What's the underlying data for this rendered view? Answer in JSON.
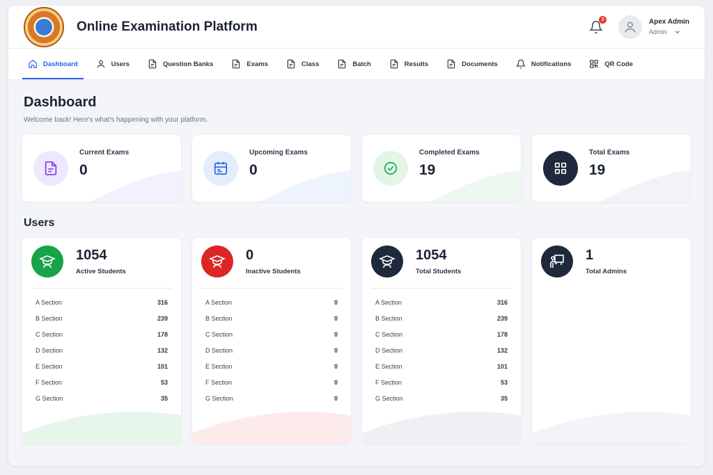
{
  "app": {
    "title": "Online Examination Platform"
  },
  "header": {
    "notification_count": "3",
    "user_name": "Apex Admin",
    "user_role": "Admin"
  },
  "nav": {
    "items": [
      {
        "label": "Dashboard",
        "icon": "home-icon"
      },
      {
        "label": "Users",
        "icon": "user-icon"
      },
      {
        "label": "Question Banks",
        "icon": "document-icon"
      },
      {
        "label": "Exams",
        "icon": "document-icon"
      },
      {
        "label": "Class",
        "icon": "document-icon"
      },
      {
        "label": "Batch",
        "icon": "document-icon"
      },
      {
        "label": "Results",
        "icon": "document-icon"
      },
      {
        "label": "Documents",
        "icon": "document-icon"
      },
      {
        "label": "Notifications",
        "icon": "bell-icon"
      },
      {
        "label": "QR Code",
        "icon": "qr-code-icon"
      }
    ]
  },
  "page": {
    "title": "Dashboard",
    "subtitle": "Welcome back! Here's what's happening with your platform."
  },
  "stats": [
    {
      "label": "Current Exams",
      "value": "0",
      "icon": "document-icon",
      "color": "#7c3aed"
    },
    {
      "label": "Upcoming Exams",
      "value": "0",
      "icon": "calendar-icon",
      "color": "#2563eb"
    },
    {
      "label": "Completed Exams",
      "value": "19",
      "icon": "check-circle-icon",
      "color": "#16a34a"
    },
    {
      "label": "Total Exams",
      "value": "19",
      "icon": "grid-icon",
      "color": "#1e293b"
    }
  ],
  "users": {
    "title": "Users",
    "cards": [
      {
        "count": "1054",
        "label": "Active Students",
        "icon": "graduate-icon",
        "color": "#16a34a",
        "rows": [
          {
            "name": "A Section",
            "value": "316"
          },
          {
            "name": "B Section",
            "value": "239"
          },
          {
            "name": "C Section",
            "value": "178"
          },
          {
            "name": "D Section",
            "value": "132"
          },
          {
            "name": "E Section",
            "value": "101"
          },
          {
            "name": "F Section",
            "value": "53"
          },
          {
            "name": "G Section",
            "value": "35"
          }
        ]
      },
      {
        "count": "0",
        "label": "Inactive Students",
        "icon": "graduate-icon",
        "color": "#dc2626",
        "rows": [
          {
            "name": "A Section",
            "value": "0"
          },
          {
            "name": "B Section",
            "value": "0"
          },
          {
            "name": "C Section",
            "value": "0"
          },
          {
            "name": "D Section",
            "value": "0"
          },
          {
            "name": "E Section",
            "value": "0"
          },
          {
            "name": "F Section",
            "value": "0"
          },
          {
            "name": "G Section",
            "value": "0"
          }
        ]
      },
      {
        "count": "1054",
        "label": "Total Students",
        "icon": "graduate-icon",
        "color": "#1e293b",
        "rows": [
          {
            "name": "A Section",
            "value": "316"
          },
          {
            "name": "B Section",
            "value": "239"
          },
          {
            "name": "C Section",
            "value": "178"
          },
          {
            "name": "D Section",
            "value": "132"
          },
          {
            "name": "E Section",
            "value": "101"
          },
          {
            "name": "F Section",
            "value": "53"
          },
          {
            "name": "G Section",
            "value": "35"
          }
        ]
      },
      {
        "count": "1",
        "label": "Total Admins",
        "icon": "teacher-board-icon",
        "color": "#1e293b",
        "rows": []
      }
    ]
  }
}
